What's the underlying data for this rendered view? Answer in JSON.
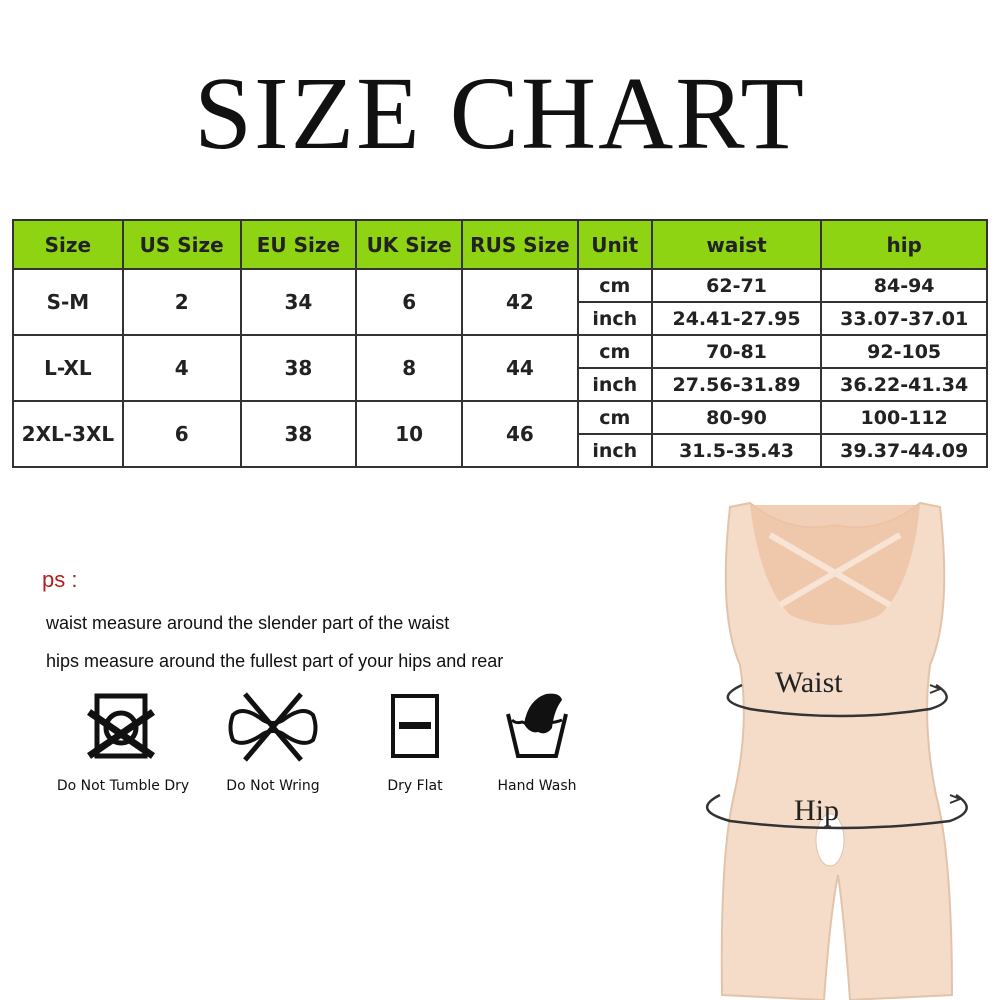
{
  "title": "SIZE CHART",
  "table": {
    "headers": [
      "Size",
      "US Size",
      "EU Size",
      "UK Size",
      "RUS Size",
      "Unit",
      "waist",
      "hip"
    ],
    "rows": [
      {
        "size": "S-M",
        "us": "2",
        "eu": "34",
        "uk": "6",
        "rus": "42",
        "cm": {
          "unit": "cm",
          "waist": "62-71",
          "hip": "84-94"
        },
        "inch": {
          "unit": "inch",
          "waist": "24.41-27.95",
          "hip": "33.07-37.01"
        }
      },
      {
        "size": "L-XL",
        "us": "4",
        "eu": "38",
        "uk": "8",
        "rus": "44",
        "cm": {
          "unit": "cm",
          "waist": "70-81",
          "hip": "92-105"
        },
        "inch": {
          "unit": "inch",
          "waist": "27.56-31.89",
          "hip": "36.22-41.34"
        }
      },
      {
        "size": "2XL-3XL",
        "us": "6",
        "eu": "38",
        "uk": "10",
        "rus": "46",
        "cm": {
          "unit": "cm",
          "waist": "80-90",
          "hip": "100-112"
        },
        "inch": {
          "unit": "inch",
          "waist": "31.5-35.43",
          "hip": "39.37-44.09"
        }
      }
    ],
    "header_color": "#8fd413"
  },
  "notes": {
    "ps": "ps :",
    "waist": "waist measure around the slender part of the waist",
    "hips": "hips measure around the fullest part of your hips and rear"
  },
  "care": [
    {
      "icon": "do-not-tumble-dry-icon",
      "label": "Do Not Tumble Dry"
    },
    {
      "icon": "do-not-wring-icon",
      "label": "Do Not Wring"
    },
    {
      "icon": "dry-flat-icon",
      "label": "Dry Flat"
    },
    {
      "icon": "hand-wash-icon",
      "label": "Hand Wash"
    }
  ],
  "figure": {
    "waist_label": "Waist",
    "hip_label": "Hip",
    "garment_color": "#f4dcc8"
  }
}
